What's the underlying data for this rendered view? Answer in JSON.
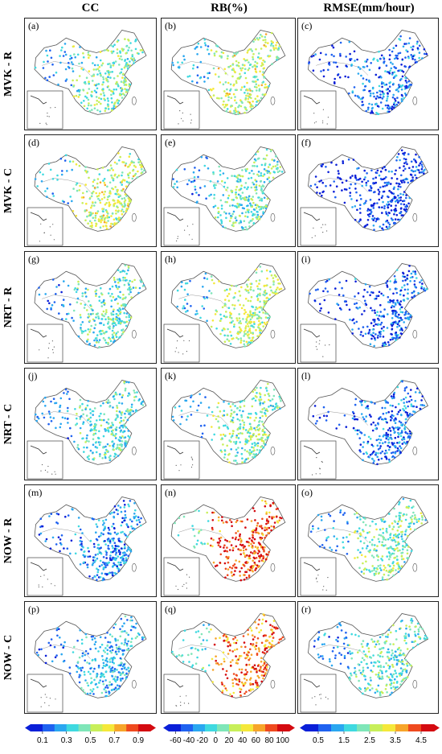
{
  "columns": [
    "CC",
    "RB(%)",
    "RMSE(mm/hour)"
  ],
  "rows": [
    "MVK - R",
    "MVK - C",
    "NRT - R",
    "NRT - C",
    "NOW - R",
    "NOW - C"
  ],
  "panel_labels": [
    "(a)",
    "(b)",
    "(c)",
    "(d)",
    "(e)",
    "(f)",
    "(g)",
    "(h)",
    "(i)",
    "(j)",
    "(k)",
    "(l)",
    "(m)",
    "(n)",
    "(o)",
    "(p)",
    "(q)",
    "(r)"
  ],
  "colors": {
    "scale": [
      "#0a1fd8",
      "#1f62f0",
      "#2aa7f0",
      "#3fd9e0",
      "#7fe6b8",
      "#c8ef5a",
      "#f5e83a",
      "#f7a52a",
      "#ef4a1e",
      "#d40a10"
    ]
  },
  "chart_data": [
    {
      "type": "heatmap",
      "title": "CC",
      "colorbar_ticks": [
        "0.1",
        "0.3",
        "0.5",
        "0.7",
        "0.9"
      ],
      "colorbar_range": [
        0,
        1
      ],
      "panel_levels": [
        0.45,
        0.55,
        0.4,
        0.38,
        0.22,
        0.3
      ]
    },
    {
      "type": "heatmap",
      "title": "RB(%)",
      "colorbar_ticks": [
        "-60",
        "-40",
        "-20",
        "0",
        "20",
        "40",
        "60",
        "80",
        "100"
      ],
      "colorbar_range": [
        -70,
        110
      ],
      "panel_levels": [
        0.55,
        0.4,
        0.52,
        0.45,
        0.85,
        0.8
      ]
    },
    {
      "type": "heatmap",
      "title": "RMSE(mm/hour)",
      "colorbar_ticks": [
        "0.5",
        "1.5",
        "2.5",
        "3.5",
        "4.5"
      ],
      "colorbar_range": [
        0,
        5
      ],
      "panel_levels": [
        0.18,
        0.08,
        0.16,
        0.17,
        0.45,
        0.4
      ]
    }
  ]
}
